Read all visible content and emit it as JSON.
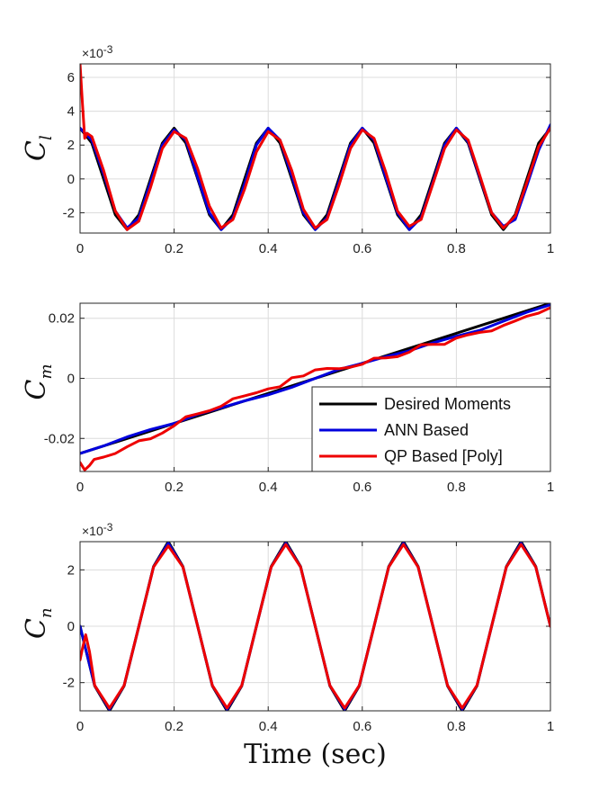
{
  "chart_data": [
    {
      "type": "line",
      "ylabel": "C",
      "ylabel_sub": "l",
      "exponent_label": "×10",
      "exponent_power": "-3",
      "xlim": [
        0,
        1
      ],
      "ylim": [
        -3.2,
        6.8
      ],
      "yscale_factor": 0.001,
      "xticks": [
        "0",
        "0.2",
        "0.4",
        "0.6",
        "0.8",
        "1"
      ],
      "yticks": [
        "-2",
        "0",
        "2",
        "4",
        "6"
      ],
      "ytick_values": [
        -2,
        0,
        2,
        4,
        6
      ],
      "grid": true,
      "series": [
        {
          "name": "Desired Moments",
          "color": "#000000",
          "x": [
            0,
            0.025,
            0.05,
            0.075,
            0.1,
            0.125,
            0.15,
            0.175,
            0.2,
            0.225,
            0.25,
            0.275,
            0.3,
            0.325,
            0.35,
            0.375,
            0.4,
            0.425,
            0.45,
            0.475,
            0.5,
            0.525,
            0.55,
            0.575,
            0.6,
            0.625,
            0.65,
            0.675,
            0.7,
            0.725,
            0.75,
            0.775,
            0.8,
            0.825,
            0.85,
            0.875,
            0.9,
            0.925,
            0.95,
            0.975,
            1
          ],
          "y": [
            3,
            2.12,
            0,
            -2.12,
            -3,
            -2.12,
            0,
            2.12,
            3,
            2.12,
            0,
            -2.12,
            -3,
            -2.12,
            0,
            2.12,
            3,
            2.12,
            0,
            -2.12,
            -3,
            -2.12,
            0,
            2.12,
            3,
            2.12,
            0,
            -2.12,
            -3,
            -2.12,
            0,
            2.12,
            3,
            2.12,
            0,
            -2.12,
            -3,
            -2.12,
            0,
            2.12,
            3
          ]
        },
        {
          "name": "ANN Based",
          "color": "#0000dd",
          "x": [
            0,
            0.025,
            0.05,
            0.075,
            0.1,
            0.125,
            0.15,
            0.175,
            0.2,
            0.225,
            0.25,
            0.275,
            0.3,
            0.325,
            0.35,
            0.375,
            0.4,
            0.425,
            0.45,
            0.475,
            0.5,
            0.525,
            0.55,
            0.575,
            0.6,
            0.625,
            0.65,
            0.675,
            0.7,
            0.725,
            0.75,
            0.775,
            0.8,
            0.825,
            0.85,
            0.875,
            0.9,
            0.925,
            0.95,
            0.975,
            1
          ],
          "y": [
            3,
            2.3,
            0.3,
            -1.9,
            -2.9,
            -2.3,
            -0.2,
            2,
            2.9,
            2.3,
            0.1,
            -2,
            -3,
            -2.3,
            -0.3,
            2,
            3,
            2.3,
            0.2,
            -2,
            -3,
            -2.3,
            -0.2,
            2,
            3,
            2.3,
            0.1,
            -2,
            -3,
            -2.3,
            -0.2,
            2,
            3,
            2.2,
            0.1,
            -2,
            -2.8,
            -2.4,
            -0.4,
            1.7,
            3.2
          ]
        },
        {
          "name": "QP Based [Poly]",
          "color": "#ee0000",
          "x": [
            0,
            0.005,
            0.01,
            0.015,
            0.025,
            0.05,
            0.075,
            0.1,
            0.125,
            0.15,
            0.175,
            0.2,
            0.225,
            0.25,
            0.275,
            0.3,
            0.325,
            0.35,
            0.375,
            0.4,
            0.425,
            0.45,
            0.475,
            0.5,
            0.525,
            0.55,
            0.575,
            0.6,
            0.625,
            0.65,
            0.675,
            0.7,
            0.725,
            0.75,
            0.775,
            0.8,
            0.825,
            0.85,
            0.875,
            0.9,
            0.925,
            0.95,
            0.975,
            1
          ],
          "y": [
            6.8,
            4.5,
            2.4,
            2.7,
            2.5,
            0.5,
            -1.9,
            -3,
            -2.5,
            -0.5,
            1.8,
            2.8,
            2.4,
            0.6,
            -1.6,
            -2.9,
            -2.4,
            -0.6,
            1.6,
            2.8,
            2.3,
            0.5,
            -1.8,
            -2.9,
            -2.4,
            -0.4,
            1.8,
            2.9,
            2.4,
            0.4,
            -1.9,
            -2.8,
            -2.4,
            -0.3,
            1.8,
            2.9,
            2.3,
            0.2,
            -2,
            -2.9,
            -2.2,
            -0.2,
            1.9,
            3
          ]
        }
      ]
    },
    {
      "type": "line",
      "ylabel": "C",
      "ylabel_sub": "m",
      "xlim": [
        0,
        1
      ],
      "ylim": [
        -0.031,
        0.025
      ],
      "xticks": [
        "0",
        "0.2",
        "0.4",
        "0.6",
        "0.8",
        "1"
      ],
      "yticks": [
        "-0.02",
        "0",
        "0.02"
      ],
      "ytick_values": [
        -0.02,
        0,
        0.02
      ],
      "grid": true,
      "legend": {
        "placement": "bottom-right",
        "entries": [
          {
            "label": "Desired Moments",
            "color": "#000000"
          },
          {
            "label": "ANN Based",
            "color": "#0000dd"
          },
          {
            "label": "QP Based [Poly]",
            "color": "#ee0000"
          }
        ]
      },
      "series": [
        {
          "name": "Desired Moments",
          "color": "#000000",
          "x": [
            0,
            1
          ],
          "y": [
            -0.025,
            0.025
          ]
        },
        {
          "name": "ANN Based",
          "color": "#0000dd",
          "x": [
            0,
            0.05,
            0.1,
            0.15,
            0.2,
            0.25,
            0.3,
            0.35,
            0.4,
            0.45,
            0.5,
            0.55,
            0.6,
            0.65,
            0.7,
            0.75,
            0.8,
            0.85,
            0.9,
            0.95,
            1
          ],
          "y": [
            -0.025,
            -0.0225,
            -0.0195,
            -0.017,
            -0.015,
            -0.012,
            -0.0098,
            -0.0075,
            -0.0055,
            -0.003,
            0,
            0.003,
            0.005,
            0.0072,
            0.0092,
            0.0118,
            0.014,
            0.016,
            0.019,
            0.022,
            0.0245
          ]
        },
        {
          "name": "QP Based [Poly]",
          "color": "#ee0000",
          "x": [
            0,
            0.01,
            0.02,
            0.03,
            0.05,
            0.075,
            0.1,
            0.125,
            0.15,
            0.175,
            0.2,
            0.225,
            0.25,
            0.275,
            0.3,
            0.325,
            0.35,
            0.375,
            0.4,
            0.425,
            0.45,
            0.475,
            0.5,
            0.525,
            0.55,
            0.575,
            0.6,
            0.625,
            0.65,
            0.675,
            0.7,
            0.725,
            0.75,
            0.775,
            0.8,
            0.825,
            0.85,
            0.875,
            0.9,
            0.925,
            0.95,
            0.975,
            1
          ],
          "y": [
            -0.028,
            -0.0305,
            -0.029,
            -0.027,
            -0.0262,
            -0.025,
            -0.0228,
            -0.0208,
            -0.0201,
            -0.0182,
            -0.0158,
            -0.0128,
            -0.0118,
            -0.0108,
            -0.0093,
            -0.0068,
            -0.0058,
            -0.0048,
            -0.0035,
            -0.0028,
            0.0002,
            0.0008,
            0.0028,
            0.0033,
            0.0032,
            0.0037,
            0.0047,
            0.0067,
            0.0068,
            0.0072,
            0.0087,
            0.0112,
            0.0113,
            0.0113,
            0.0134,
            0.0145,
            0.0153,
            0.0158,
            0.0176,
            0.0191,
            0.0207,
            0.0217,
            0.0235
          ]
        }
      ]
    },
    {
      "type": "line",
      "ylabel": "C",
      "ylabel_sub": "n",
      "exponent_label": "×10",
      "exponent_power": "-3",
      "xlabel": "Time (sec)",
      "xlim": [
        0,
        1
      ],
      "ylim": [
        -3,
        3
      ],
      "yscale_factor": 0.001,
      "xticks": [
        "0",
        "0.2",
        "0.4",
        "0.6",
        "0.8",
        "1"
      ],
      "yticks": [
        "-2",
        "0",
        "2"
      ],
      "ytick_values": [
        -2,
        0,
        2
      ],
      "grid": true,
      "series": [
        {
          "name": "Desired Moments",
          "color": "#000000",
          "x": [
            0,
            0.03125,
            0.0625,
            0.09375,
            0.125,
            0.15625,
            0.1875,
            0.21875,
            0.25,
            0.28125,
            0.3125,
            0.34375,
            0.375,
            0.40625,
            0.4375,
            0.46875,
            0.5,
            0.53125,
            0.5625,
            0.59375,
            0.625,
            0.65625,
            0.6875,
            0.71875,
            0.75,
            0.78125,
            0.8125,
            0.84375,
            0.875,
            0.90625,
            0.9375,
            0.96875,
            1
          ],
          "y": [
            0,
            -2.12,
            -3,
            -2.12,
            0,
            2.12,
            3,
            2.12,
            0,
            -2.12,
            -3,
            -2.12,
            0,
            2.12,
            3,
            2.12,
            0,
            -2.12,
            -3,
            -2.12,
            0,
            2.12,
            3,
            2.12,
            0,
            -2.12,
            -3,
            -2.12,
            0,
            2.12,
            3,
            2.12,
            0
          ]
        },
        {
          "name": "ANN Based",
          "color": "#0000dd",
          "x": [
            0,
            0.03125,
            0.0625,
            0.09375,
            0.125,
            0.15625,
            0.1875,
            0.21875,
            0.25,
            0.28125,
            0.3125,
            0.34375,
            0.375,
            0.40625,
            0.4375,
            0.46875,
            0.5,
            0.53125,
            0.5625,
            0.59375,
            0.625,
            0.65625,
            0.6875,
            0.71875,
            0.75,
            0.78125,
            0.8125,
            0.84375,
            0.875,
            0.90625,
            0.9375,
            0.96875,
            1
          ],
          "y": [
            0,
            -2.1,
            -2.95,
            -2.1,
            0,
            2.1,
            2.95,
            2.1,
            0,
            -2.1,
            -2.95,
            -2.1,
            0,
            2.1,
            2.95,
            2.1,
            0,
            -2.1,
            -2.95,
            -2.1,
            0,
            2.1,
            2.95,
            2.1,
            0,
            -2.1,
            -2.95,
            -2.1,
            0,
            2.1,
            2.95,
            2.1,
            0
          ]
        },
        {
          "name": "QP Based [Poly]",
          "color": "#ee0000",
          "x": [
            0,
            0.005,
            0.012,
            0.02,
            0.03125,
            0.0625,
            0.09375,
            0.125,
            0.15625,
            0.1875,
            0.21875,
            0.25,
            0.28125,
            0.3125,
            0.34375,
            0.375,
            0.40625,
            0.4375,
            0.46875,
            0.5,
            0.53125,
            0.5625,
            0.59375,
            0.625,
            0.65625,
            0.6875,
            0.71875,
            0.75,
            0.78125,
            0.8125,
            0.84375,
            0.875,
            0.90625,
            0.9375,
            0.96875,
            1
          ],
          "y": [
            -1.2,
            -0.8,
            -0.3,
            -0.9,
            -2.1,
            -2.9,
            -2.1,
            0,
            2.1,
            2.85,
            2.1,
            0,
            -2.1,
            -2.9,
            -2.1,
            0,
            2.1,
            2.9,
            2.1,
            0,
            -2.1,
            -2.9,
            -2.1,
            0,
            2.1,
            2.9,
            2.1,
            0,
            -2.1,
            -2.9,
            -2.1,
            0,
            2.1,
            2.9,
            2.1,
            0
          ]
        }
      ]
    }
  ]
}
